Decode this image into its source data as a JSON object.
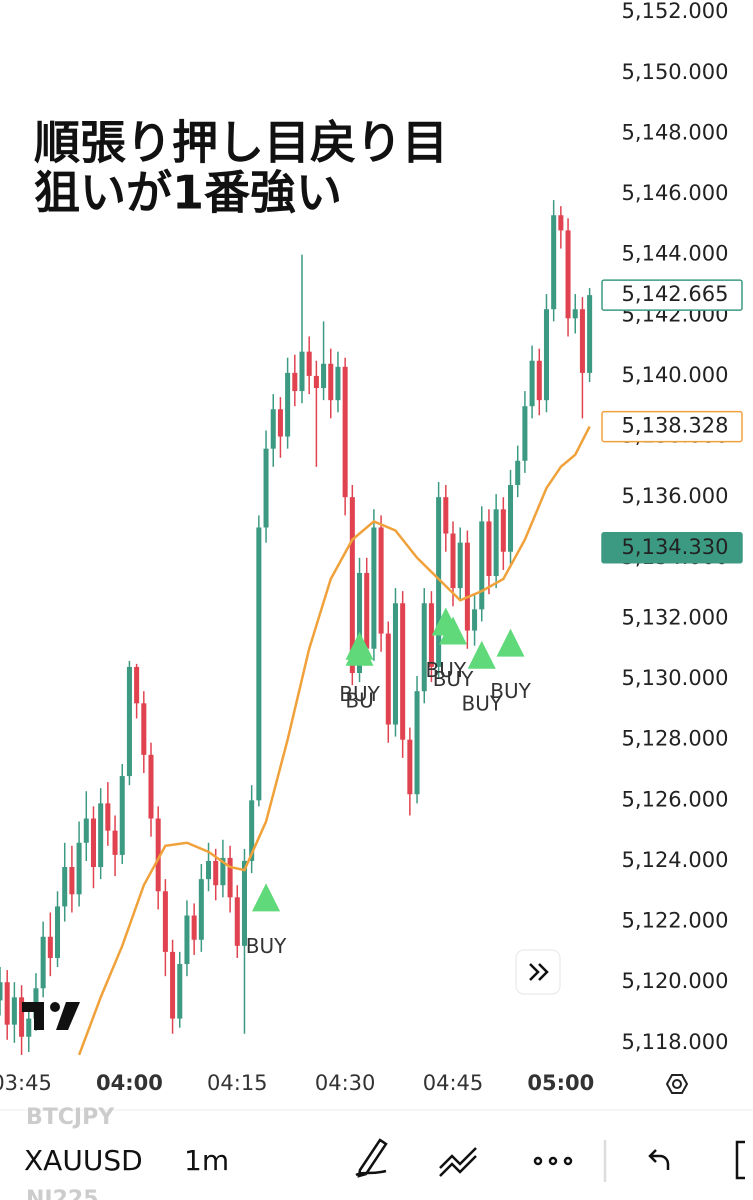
{
  "header": {
    "title_lines": [
      "順張り押し目戻り目",
      "狙いが1番強い"
    ]
  },
  "chart_data": {
    "type": "candlestick",
    "xlim": [
      "03:42",
      "05:06"
    ],
    "ylim": [
      5117.5,
      5152.4
    ],
    "xticks": [
      "03:45",
      "04:00",
      "04:15",
      "04:30",
      "04:45",
      "05:00"
    ],
    "yticks": [
      {
        "value": 5152,
        "label": "5,152.000"
      },
      {
        "value": 5150,
        "label": "5,150.000"
      },
      {
        "value": 5148,
        "label": "5,148.000"
      },
      {
        "value": 5146,
        "label": "5,146.000"
      },
      {
        "value": 5144,
        "label": "5,144.000"
      },
      {
        "value": 5142,
        "label": "5,142.000"
      },
      {
        "value": 5140,
        "label": "5,140.000"
      },
      {
        "value": 5138,
        "label": "5,138.000"
      },
      {
        "value": 5136,
        "label": "5,136.000"
      },
      {
        "value": 5134,
        "label": "5,134.000"
      },
      {
        "value": 5132,
        "label": "5,132.000"
      },
      {
        "value": 5130,
        "label": "5,130.000"
      },
      {
        "value": 5128,
        "label": "5,128.000"
      },
      {
        "value": 5126,
        "label": "5,126.000"
      },
      {
        "value": 5124,
        "label": "5,124.000"
      },
      {
        "value": 5122,
        "label": "5,122.000"
      },
      {
        "value": 5120,
        "label": "5,120.000"
      },
      {
        "value": 5118,
        "label": "5,118.000"
      }
    ],
    "up_color": "#3d9a82",
    "down_color": "#e0434f",
    "candles": {
      "x": [
        "03:42",
        "03:43",
        "03:44",
        "03:45",
        "03:46",
        "03:47",
        "03:48",
        "03:49",
        "03:50",
        "03:51",
        "03:52",
        "03:53",
        "03:54",
        "03:55",
        "03:56",
        "03:57",
        "03:58",
        "03:59",
        "04:00",
        "04:01",
        "04:02",
        "04:03",
        "04:04",
        "04:05",
        "04:06",
        "04:07",
        "04:08",
        "04:09",
        "04:10",
        "04:11",
        "04:12",
        "04:13",
        "04:14",
        "04:15",
        "04:16",
        "04:17",
        "04:18",
        "04:19",
        "04:20",
        "04:21",
        "04:22",
        "04:23",
        "04:24",
        "04:25",
        "04:26",
        "04:27",
        "04:28",
        "04:29",
        "04:30",
        "04:31",
        "04:32",
        "04:33",
        "04:34",
        "04:35",
        "04:36",
        "04:37",
        "04:38",
        "04:39",
        "04:40",
        "04:41",
        "04:42",
        "04:43",
        "04:44",
        "04:45",
        "04:46",
        "04:47",
        "04:48",
        "04:49",
        "04:50",
        "04:51",
        "04:52",
        "04:53",
        "04:54",
        "04:55",
        "04:56",
        "04:57",
        "04:58",
        "04:59",
        "05:00",
        "05:01",
        "05:02",
        "05:03",
        "05:04"
      ],
      "open": [
        5119.4,
        5120.0,
        5118.6,
        5119.5,
        5118.2,
        5118.8,
        5119.8,
        5121.5,
        5120.8,
        5122.5,
        5123.8,
        5122.9,
        5124.6,
        5125.4,
        5123.8,
        5125.9,
        5125.0,
        5124.2,
        5126.8,
        5130.4,
        5129.2,
        5127.5,
        5125.4,
        5123.0,
        5121.0,
        5118.8,
        5120.6,
        5122.2,
        5121.4,
        5123.4,
        5124.0,
        5123.2,
        5124.1,
        5122.8,
        5121.2,
        5124.0,
        5126.0,
        5135.0,
        5137.6,
        5138.9,
        5138.0,
        5140.1,
        5139.5,
        5140.8,
        5140.0,
        5139.6,
        5140.4,
        5139.2,
        5140.3,
        5136.0,
        5130.2,
        5133.5,
        5131.0,
        5135.0,
        5131.5,
        5128.5,
        5132.5,
        5128.0,
        5126.2,
        5129.6,
        5132.5,
        5130.4,
        5136.0,
        5134.8,
        5133.0,
        5134.5,
        5131.6,
        5132.3,
        5135.2,
        5133.4,
        5135.6,
        5134.2,
        5136.4,
        5137.2,
        5139.0,
        5140.5,
        5139.2,
        5142.2,
        5145.3,
        5144.8,
        5141.9,
        5142.2,
        5140.1
      ],
      "high": [
        5120.5,
        5120.4,
        5120.0,
        5119.9,
        5119.3,
        5120.3,
        5122.0,
        5122.3,
        5123.0,
        5124.6,
        5124.5,
        5125.3,
        5126.3,
        5125.8,
        5126.4,
        5126.6,
        5125.5,
        5127.2,
        5130.6,
        5130.5,
        5129.6,
        5127.9,
        5125.8,
        5123.4,
        5121.4,
        5121.0,
        5122.7,
        5122.6,
        5123.9,
        5124.6,
        5124.4,
        5124.7,
        5124.5,
        5123.2,
        5124.4,
        5126.5,
        5135.4,
        5138.2,
        5139.4,
        5139.3,
        5140.6,
        5140.7,
        5144.0,
        5141.3,
        5140.5,
        5141.8,
        5140.9,
        5140.8,
        5140.6,
        5136.4,
        5134.0,
        5134.0,
        5135.6,
        5135.4,
        5131.9,
        5133.0,
        5132.9,
        5128.4,
        5130.1,
        5133.0,
        5132.9,
        5136.5,
        5136.4,
        5135.2,
        5135.0,
        5134.9,
        5132.8,
        5135.7,
        5135.6,
        5136.1,
        5136.0,
        5136.9,
        5137.7,
        5139.5,
        5141.0,
        5140.9,
        5142.7,
        5145.8,
        5145.6,
        5145.2,
        5142.7,
        5142.6,
        5142.9
      ],
      "low": [
        5118.9,
        5118.1,
        5118.0,
        5117.6,
        5117.7,
        5118.4,
        5119.5,
        5120.2,
        5120.5,
        5122.0,
        5122.3,
        5122.5,
        5124.0,
        5123.1,
        5123.4,
        5124.5,
        5123.5,
        5123.9,
        5126.5,
        5128.7,
        5126.9,
        5124.8,
        5122.4,
        5120.2,
        5118.3,
        5118.5,
        5120.2,
        5120.9,
        5121.0,
        5123.0,
        5122.7,
        5122.8,
        5122.3,
        5120.8,
        5118.3,
        5123.6,
        5125.8,
        5134.5,
        5137.0,
        5137.3,
        5137.6,
        5139.0,
        5139.1,
        5139.4,
        5137.0,
        5139.2,
        5138.6,
        5138.8,
        5135.4,
        5129.8,
        5129.9,
        5130.5,
        5130.6,
        5130.9,
        5127.9,
        5128.1,
        5127.4,
        5125.5,
        5125.9,
        5129.2,
        5129.9,
        5130.0,
        5134.2,
        5132.4,
        5132.6,
        5131.0,
        5131.1,
        5131.9,
        5132.8,
        5133.0,
        5133.6,
        5133.8,
        5136.0,
        5136.8,
        5138.6,
        5138.7,
        5138.8,
        5141.8,
        5144.2,
        5141.3,
        5141.4,
        5138.6,
        5139.8
      ],
      "close": [
        5120.0,
        5118.6,
        5119.5,
        5118.2,
        5118.8,
        5119.8,
        5121.5,
        5120.8,
        5122.5,
        5123.8,
        5122.9,
        5124.6,
        5125.4,
        5123.8,
        5125.9,
        5125.0,
        5124.2,
        5126.8,
        5130.4,
        5129.2,
        5127.5,
        5125.4,
        5123.0,
        5121.0,
        5118.8,
        5120.6,
        5122.2,
        5121.4,
        5123.4,
        5124.0,
        5123.2,
        5124.1,
        5122.8,
        5121.2,
        5124.0,
        5126.0,
        5135.0,
        5137.6,
        5138.9,
        5138.0,
        5140.1,
        5139.5,
        5140.8,
        5140.0,
        5139.6,
        5140.4,
        5139.2,
        5140.3,
        5136.0,
        5130.2,
        5133.5,
        5131.0,
        5135.0,
        5131.5,
        5128.5,
        5132.5,
        5128.0,
        5126.2,
        5129.6,
        5132.5,
        5130.4,
        5136.0,
        5134.8,
        5133.0,
        5134.5,
        5131.6,
        5132.3,
        5135.2,
        5133.4,
        5135.6,
        5134.2,
        5136.4,
        5137.2,
        5139.0,
        5140.5,
        5139.2,
        5142.2,
        5145.3,
        5144.8,
        5141.9,
        5142.2,
        5140.1,
        5142.665
      ]
    },
    "ma": {
      "color": "#f0a13a",
      "x": [
        "03:53",
        "03:56",
        "03:59",
        "04:02",
        "04:05",
        "04:08",
        "04:11",
        "04:14",
        "04:16",
        "04:19",
        "04:22",
        "04:25",
        "04:28",
        "04:31",
        "04:34",
        "04:37",
        "04:40",
        "04:43",
        "04:46",
        "04:49",
        "04:52",
        "04:55",
        "04:58",
        "05:00",
        "05:02",
        "05:04"
      ],
      "values": [
        5117.6,
        5119.5,
        5121.2,
        5123.2,
        5124.5,
        5124.6,
        5124.3,
        5123.8,
        5123.7,
        5125.3,
        5128.0,
        5131.0,
        5133.3,
        5134.6,
        5135.2,
        5134.9,
        5134.0,
        5133.3,
        5132.6,
        5132.9,
        5133.3,
        5134.6,
        5136.3,
        5137.0,
        5137.4,
        5138.328
      ]
    },
    "signals": {
      "color": "#5fd97a",
      "x": [
        "04:19",
        "04:32",
        "04:32",
        "04:44",
        "04:45",
        "04:49",
        "04:53"
      ],
      "values": [
        5122.8,
        5131.1,
        5130.9,
        5131.9,
        5131.6,
        5130.8,
        5131.2
      ],
      "labels": [
        "BUY",
        "BUY",
        "BU",
        "BUY",
        "BUY",
        "BUY",
        "BUY"
      ]
    },
    "price_labels": [
      {
        "value": 5142.665,
        "label": "5,142.665",
        "style": "outline",
        "color": "#3d9a82"
      },
      {
        "value": 5138.328,
        "label": "5,138.328",
        "style": "outline",
        "color": "#f0a13a"
      },
      {
        "value": 5134.33,
        "label": "5,134.330",
        "style": "filled",
        "color": "#3d9a82"
      }
    ]
  },
  "toolbar": {
    "symbol_above": "BTCJPY",
    "symbol": "XAUUSD",
    "interval": "1m",
    "symbol_below": "NI225"
  }
}
